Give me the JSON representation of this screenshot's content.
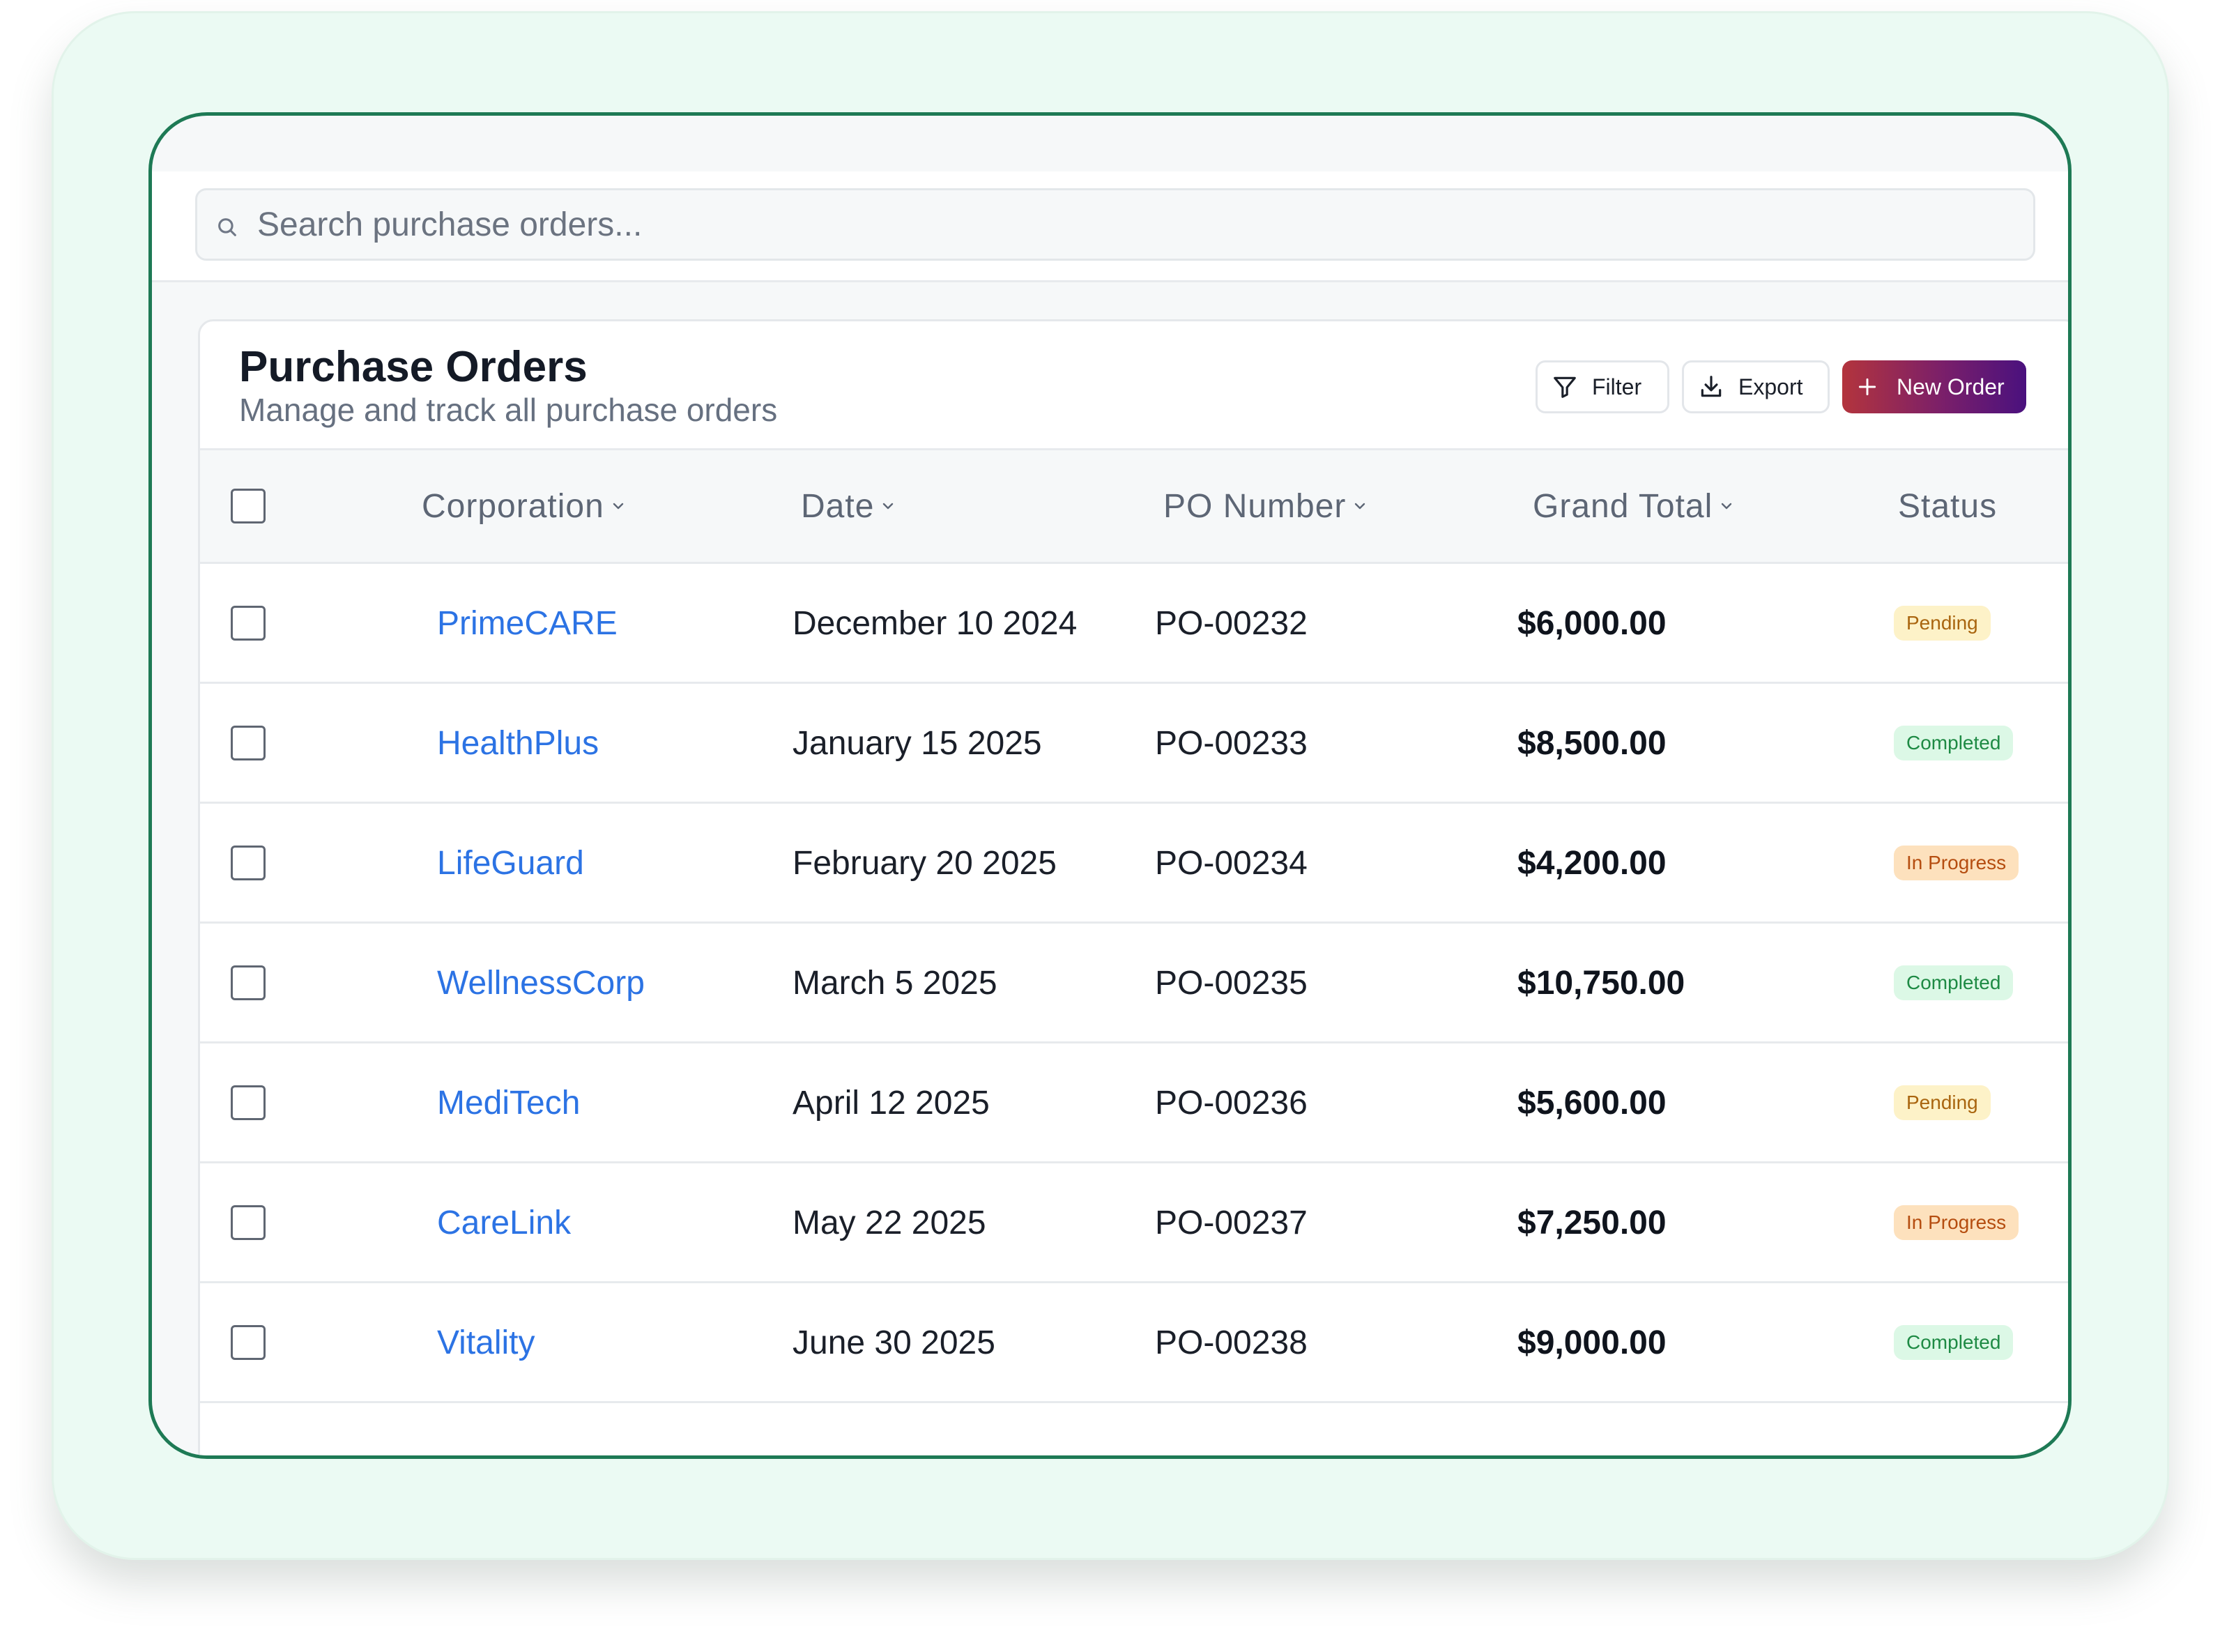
{
  "search": {
    "placeholder": "Search purchase orders..."
  },
  "header": {
    "title": "Purchase Orders",
    "subtitle": "Manage and track all purchase orders",
    "filter_label": "Filter",
    "export_label": "Export",
    "new_order_label": "New Order"
  },
  "table": {
    "columns": [
      "Corporation",
      "Date",
      "PO Number",
      "Grand Total",
      "Status"
    ],
    "rows": [
      {
        "corporation": "PrimeCARE",
        "date": "December 10 2024",
        "po": "PO-00232",
        "total": "$6,000.00",
        "status": "Pending",
        "status_kind": "pending"
      },
      {
        "corporation": "HealthPlus",
        "date": "January 15 2025",
        "po": "PO-00233",
        "total": "$8,500.00",
        "status": "Completed",
        "status_kind": "completed"
      },
      {
        "corporation": "LifeGuard",
        "date": "February 20 2025",
        "po": "PO-00234",
        "total": "$4,200.00",
        "status": "In Progress",
        "status_kind": "progress"
      },
      {
        "corporation": "WellnessCorp",
        "date": "March 5 2025",
        "po": "PO-00235",
        "total": "$10,750.00",
        "status": "Completed",
        "status_kind": "completed"
      },
      {
        "corporation": "MediTech",
        "date": "April 12 2025",
        "po": "PO-00236",
        "total": "$5,600.00",
        "status": "Pending",
        "status_kind": "pending"
      },
      {
        "corporation": "CareLink",
        "date": "May 22 2025",
        "po": "PO-00237",
        "total": "$7,250.00",
        "status": "In Progress",
        "status_kind": "progress"
      },
      {
        "corporation": "Vitality",
        "date": "June 30 2025",
        "po": "PO-00238",
        "total": "$9,000.00",
        "status": "Completed",
        "status_kind": "completed"
      }
    ]
  },
  "colors": {
    "frame_border": "#1e7a55",
    "outer_background": "#ebfaf3",
    "link": "#2c73e4",
    "new_order_gradient_start": "#b3343d",
    "new_order_gradient_end": "#4a117e",
    "pending_badge": "#fdf2c8",
    "completed_badge": "#dcf8e6",
    "in_progress_badge": "#fde1bd"
  },
  "icons": {
    "search": "search-icon",
    "filter": "filter-icon",
    "export": "download-icon",
    "new_order": "plus-icon",
    "sort": "chevron-down-icon"
  }
}
